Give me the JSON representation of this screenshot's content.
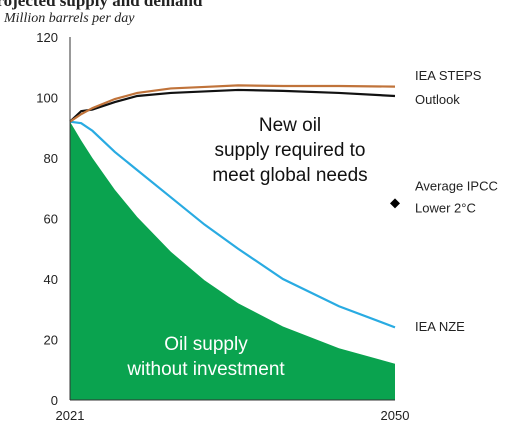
{
  "chart_data": {
    "type": "line",
    "title": "Projected supply and demand",
    "subtitle": "Million barrels per day",
    "x": [
      2021,
      2022,
      2023,
      2025,
      2027,
      2030,
      2033,
      2036,
      2040,
      2045,
      2050
    ],
    "xlim": [
      2021,
      2050
    ],
    "xticks": [
      2021,
      2050
    ],
    "ylim": [
      0,
      120
    ],
    "yticks": [
      0,
      20,
      40,
      60,
      80,
      100,
      120
    ],
    "grid": false,
    "series": [
      {
        "name": "Oil supply without investment",
        "color": "#0aa34f",
        "area": true,
        "values": [
          92,
          85.8,
          80,
          69.5,
          60.5,
          49,
          39.6,
          32,
          24.3,
          17.1,
          12
        ]
      },
      {
        "name": "IEA NZE",
        "color": "#29abe2",
        "values": [
          92,
          91.5,
          89,
          82,
          76,
          67,
          58,
          50,
          40,
          31,
          24
        ]
      },
      {
        "name": "Outlook",
        "color": "#111111",
        "values": [
          92,
          95.5,
          96,
          98.5,
          100.5,
          101.5,
          102,
          102.5,
          102.2,
          101.5,
          100.5
        ]
      },
      {
        "name": "IEA STEPS",
        "color": "#c0733a",
        "values": [
          92,
          94.5,
          96.5,
          99.5,
          101.5,
          103,
          103.5,
          104,
          103.8,
          103.8,
          103.6
        ]
      }
    ],
    "points": [
      {
        "label": [
          "Average IPCC",
          "Lower 2°C"
        ],
        "x": 2050,
        "y": 65,
        "color": "#000000"
      }
    ],
    "annotations": [
      {
        "lines": [
          "New oil",
          "supply required to",
          "meet global needs"
        ]
      },
      {
        "lines": [
          "Oil supply",
          "without investment"
        ]
      }
    ]
  }
}
